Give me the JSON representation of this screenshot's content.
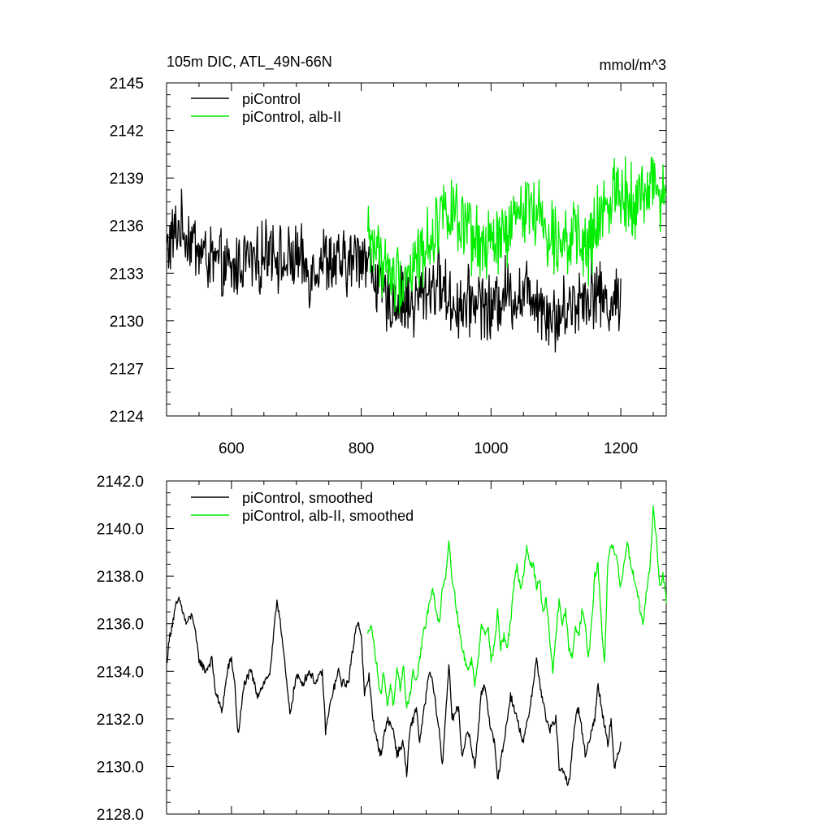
{
  "chart_data": [
    {
      "type": "line",
      "title": "105m DIC, ATL_49N-66N",
      "units": "mmol/m^3",
      "xlim": [
        500,
        1270
      ],
      "ylim": [
        2124,
        2145
      ],
      "xticks": [
        600,
        800,
        1000,
        1200
      ],
      "yticks": [
        2124,
        2127,
        2130,
        2133,
        2136,
        2139,
        2142,
        2145
      ],
      "colors": {
        "piControl": "#000000",
        "alb": "#00ee00"
      },
      "series": [
        {
          "name": "piControl",
          "color": "#000000",
          "x_range": [
            500,
            1200
          ],
          "keypoints": [
            [
              500,
              2134.5
            ],
            [
              520,
              2136
            ],
            [
              540,
              2135
            ],
            [
              560,
              2134
            ],
            [
              580,
              2133.5
            ],
            [
              600,
              2133
            ],
            [
              620,
              2134
            ],
            [
              640,
              2133.5
            ],
            [
              660,
              2135
            ],
            [
              680,
              2133.5
            ],
            [
              700,
              2134
            ],
            [
              720,
              2133
            ],
            [
              740,
              2134
            ],
            [
              760,
              2133.5
            ],
            [
              780,
              2133.5
            ],
            [
              800,
              2134.5
            ],
            [
              820,
              2133
            ],
            [
              840,
              2131
            ],
            [
              860,
              2131.5
            ],
            [
              880,
              2131
            ],
            [
              900,
              2132
            ],
            [
              920,
              2132.5
            ],
            [
              940,
              2131
            ],
            [
              960,
              2131
            ],
            [
              980,
              2131.5
            ],
            [
              1000,
              2130.5
            ],
            [
              1020,
              2132
            ],
            [
              1040,
              2131.5
            ],
            [
              1060,
              2132
            ],
            [
              1080,
              2131
            ],
            [
              1100,
              2130
            ],
            [
              1120,
              2131
            ],
            [
              1140,
              2131.5
            ],
            [
              1160,
              2132
            ],
            [
              1180,
              2131
            ],
            [
              1200,
              2131.5
            ]
          ],
          "amplitude": 1.8
        },
        {
          "name": "piControl, alb-II",
          "color": "#00ee00",
          "x_range": [
            810,
            1270
          ],
          "keypoints": [
            [
              810,
              2135.5
            ],
            [
              830,
              2134
            ],
            [
              850,
              2132.5
            ],
            [
              870,
              2133
            ],
            [
              890,
              2134
            ],
            [
              910,
              2135.5
            ],
            [
              930,
              2137.5
            ],
            [
              950,
              2136
            ],
            [
              970,
              2135
            ],
            [
              990,
              2134.5
            ],
            [
              1010,
              2135
            ],
            [
              1030,
              2135.5
            ],
            [
              1050,
              2137.5
            ],
            [
              1070,
              2137
            ],
            [
              1090,
              2135.5
            ],
            [
              1110,
              2135.5
            ],
            [
              1130,
              2135
            ],
            [
              1150,
              2134.5
            ],
            [
              1170,
              2136.5
            ],
            [
              1190,
              2138.5
            ],
            [
              1210,
              2138
            ],
            [
              1230,
              2137.5
            ],
            [
              1250,
              2139
            ],
            [
              1270,
              2137
            ]
          ],
          "amplitude": 1.9
        }
      ]
    },
    {
      "type": "line",
      "title": "",
      "xlim": [
        500,
        1270
      ],
      "ylim": [
        2128.0,
        2142.0
      ],
      "xticks": [
        600,
        800,
        1000,
        1200
      ],
      "yticks": [
        "2128.0",
        "2130.0",
        "2132.0",
        "2134.0",
        "2136.0",
        "2138.0",
        "2140.0",
        "2142.0"
      ],
      "series": [
        {
          "name": "piControl, smoothed",
          "color": "#000000",
          "x_range": [
            500,
            1200
          ],
          "keypoints": [
            [
              500,
              2134.3
            ],
            [
              505,
              2135.5
            ],
            [
              515,
              2136.8
            ],
            [
              520,
              2137.0
            ],
            [
              530,
              2136.0
            ],
            [
              540,
              2136.4
            ],
            [
              550,
              2134.5
            ],
            [
              560,
              2134.0
            ],
            [
              570,
              2134.5
            ],
            [
              575,
              2133.2
            ],
            [
              585,
              2132.3
            ],
            [
              595,
              2134.2
            ],
            [
              600,
              2134.5
            ],
            [
              605,
              2133.5
            ],
            [
              610,
              2131.3
            ],
            [
              620,
              2133.5
            ],
            [
              630,
              2134.0
            ],
            [
              640,
              2133.0
            ],
            [
              650,
              2133.5
            ],
            [
              660,
              2134.0
            ],
            [
              665,
              2135.5
            ],
            [
              670,
              2137.0
            ],
            [
              675,
              2136.2
            ],
            [
              685,
              2133.5
            ],
            [
              690,
              2132.2
            ],
            [
              700,
              2133.8
            ],
            [
              710,
              2133.5
            ],
            [
              720,
              2134.0
            ],
            [
              730,
              2133.5
            ],
            [
              740,
              2134.0
            ],
            [
              745,
              2131.5
            ],
            [
              755,
              2133.0
            ],
            [
              765,
              2134.0
            ],
            [
              770,
              2133.5
            ],
            [
              780,
              2133.5
            ],
            [
              785,
              2134.5
            ],
            [
              790,
              2135.5
            ],
            [
              795,
              2136.2
            ],
            [
              800,
              2135.5
            ],
            [
              805,
              2133.0
            ],
            [
              812,
              2133.8
            ],
            [
              820,
              2131.5
            ],
            [
              830,
              2130.5
            ],
            [
              840,
              2132.0
            ],
            [
              850,
              2131.5
            ],
            [
              855,
              2130.5
            ],
            [
              865,
              2131.0
            ],
            [
              870,
              2129.6
            ],
            [
              875,
              2131.5
            ],
            [
              885,
              2132.5
            ],
            [
              890,
              2131.0
            ],
            [
              900,
              2133.0
            ],
            [
              905,
              2134.0
            ],
            [
              910,
              2133.5
            ],
            [
              920,
              2131.5
            ],
            [
              925,
              2130.0
            ],
            [
              935,
              2134.3
            ],
            [
              940,
              2132.0
            ],
            [
              950,
              2132.5
            ],
            [
              955,
              2130.5
            ],
            [
              965,
              2131.5
            ],
            [
              975,
              2130.0
            ],
            [
              985,
              2133.0
            ],
            [
              990,
              2133.5
            ],
            [
              1000,
              2131.5
            ],
            [
              1005,
              2131.0
            ],
            [
              1010,
              2129.5
            ],
            [
              1020,
              2131.0
            ],
            [
              1030,
              2133.0
            ],
            [
              1040,
              2132.0
            ],
            [
              1050,
              2131.0
            ],
            [
              1060,
              2132.5
            ],
            [
              1070,
              2134.5
            ],
            [
              1075,
              2133.5
            ],
            [
              1085,
              2132.0
            ],
            [
              1090,
              2131.5
            ],
            [
              1100,
              2132.0
            ],
            [
              1105,
              2130.0
            ],
            [
              1115,
              2129.5
            ],
            [
              1120,
              2129.3
            ],
            [
              1130,
              2132.0
            ],
            [
              1135,
              2132.5
            ],
            [
              1145,
              2130.5
            ],
            [
              1150,
              2131.0
            ],
            [
              1160,
              2132.0
            ],
            [
              1165,
              2133.5
            ],
            [
              1170,
              2132.5
            ],
            [
              1180,
              2131.0
            ],
            [
              1185,
              2132.0
            ],
            [
              1190,
              2129.8
            ],
            [
              1195,
              2130.5
            ],
            [
              1200,
              2131.0
            ]
          ],
          "amplitude": 0.35
        },
        {
          "name": "piControl, alb-II, smoothed",
          "color": "#00ee00",
          "x_range": [
            810,
            1270
          ],
          "keypoints": [
            [
              810,
              2135.5
            ],
            [
              815,
              2136.1
            ],
            [
              820,
              2135.0
            ],
            [
              825,
              2134.0
            ],
            [
              830,
              2133.0
            ],
            [
              835,
              2134.0
            ],
            [
              840,
              2132.5
            ],
            [
              845,
              2133.5
            ],
            [
              850,
              2132.5
            ],
            [
              855,
              2134.0
            ],
            [
              860,
              2133.3
            ],
            [
              865,
              2134.2
            ],
            [
              870,
              2132.5
            ],
            [
              875,
              2133.0
            ],
            [
              880,
              2134.0
            ],
            [
              885,
              2133.5
            ],
            [
              890,
              2134.5
            ],
            [
              895,
              2135.5
            ],
            [
              900,
              2136.0
            ],
            [
              905,
              2137.0
            ],
            [
              910,
              2137.5
            ],
            [
              915,
              2136.5
            ],
            [
              920,
              2136.0
            ],
            [
              925,
              2137.5
            ],
            [
              930,
              2138.0
            ],
            [
              935,
              2139.5
            ],
            [
              940,
              2138.0
            ],
            [
              945,
              2137.0
            ],
            [
              950,
              2136.0
            ],
            [
              955,
              2135.0
            ],
            [
              960,
              2134.5
            ],
            [
              965,
              2134.0
            ],
            [
              970,
              2134.5
            ],
            [
              975,
              2133.5
            ],
            [
              980,
              2134.5
            ],
            [
              985,
              2136.0
            ],
            [
              990,
              2135.5
            ],
            [
              995,
              2136.0
            ],
            [
              1000,
              2134.5
            ],
            [
              1005,
              2135.0
            ],
            [
              1010,
              2136.5
            ],
            [
              1015,
              2135.0
            ],
            [
              1020,
              2135.5
            ],
            [
              1025,
              2135.0
            ],
            [
              1030,
              2136.0
            ],
            [
              1035,
              2137.5
            ],
            [
              1040,
              2138.5
            ],
            [
              1045,
              2137.5
            ],
            [
              1050,
              2138.0
            ],
            [
              1055,
              2139.3
            ],
            [
              1060,
              2138.5
            ],
            [
              1065,
              2138.5
            ],
            [
              1070,
              2137.5
            ],
            [
              1075,
              2137.8
            ],
            [
              1080,
              2136.5
            ],
            [
              1085,
              2137.0
            ],
            [
              1090,
              2135.5
            ],
            [
              1095,
              2134.0
            ],
            [
              1100,
              2135.5
            ],
            [
              1105,
              2137.0
            ],
            [
              1110,
              2136.0
            ],
            [
              1115,
              2136.5
            ],
            [
              1120,
              2135.0
            ],
            [
              1125,
              2134.5
            ],
            [
              1130,
              2136.0
            ],
            [
              1135,
              2135.5
            ],
            [
              1140,
              2136.5
            ],
            [
              1145,
              2136.0
            ],
            [
              1150,
              2134.5
            ],
            [
              1155,
              2136.0
            ],
            [
              1160,
              2138.0
            ],
            [
              1165,
              2138.5
            ],
            [
              1170,
              2136.0
            ],
            [
              1175,
              2134.3
            ],
            [
              1180,
              2138.5
            ],
            [
              1185,
              2139.3
            ],
            [
              1190,
              2139.0
            ],
            [
              1195,
              2138.5
            ],
            [
              1200,
              2137.5
            ],
            [
              1205,
              2138.5
            ],
            [
              1210,
              2139.5
            ],
            [
              1215,
              2138.5
            ],
            [
              1220,
              2138.0
            ],
            [
              1225,
              2137.5
            ],
            [
              1230,
              2136.5
            ],
            [
              1235,
              2136.0
            ],
            [
              1240,
              2137.5
            ],
            [
              1245,
              2138.5
            ],
            [
              1250,
              2140.8
            ],
            [
              1255,
              2139.5
            ],
            [
              1260,
              2137.5
            ],
            [
              1265,
              2138.0
            ],
            [
              1270,
              2137.0
            ]
          ],
          "amplitude": 0.35
        }
      ]
    }
  ]
}
